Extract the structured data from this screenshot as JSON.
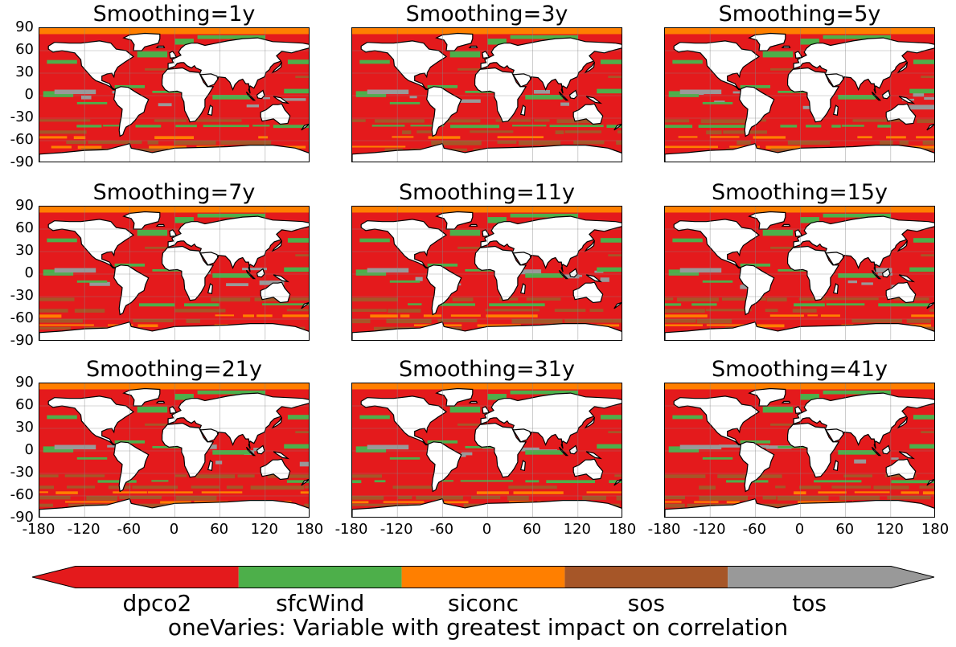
{
  "figure": {
    "panels": [
      {
        "title": "Smoothing=1y"
      },
      {
        "title": "Smoothing=3y"
      },
      {
        "title": "Smoothing=5y"
      },
      {
        "title": "Smoothing=7y"
      },
      {
        "title": "Smoothing=11y"
      },
      {
        "title": "Smoothing=15y"
      },
      {
        "title": "Smoothing=21y"
      },
      {
        "title": "Smoothing=31y"
      },
      {
        "title": "Smoothing=41y"
      }
    ],
    "y_ticks": [
      "90",
      "60",
      "30",
      "0",
      "-30",
      "-60",
      "-90"
    ],
    "x_ticks": [
      "-180",
      "-120",
      "-60",
      "0",
      "60",
      "120",
      "180"
    ],
    "colorbar": {
      "title": "oneVaries: Variable with greatest impact on correlation",
      "categories": [
        {
          "name": "dpco2",
          "color": "#e41a1c"
        },
        {
          "name": "sfcWind",
          "color": "#4daf4a"
        },
        {
          "name": "siconc",
          "color": "#ff7f00"
        },
        {
          "name": "sos",
          "color": "#a65628"
        },
        {
          "name": "tos",
          "color": "#999999"
        }
      ]
    }
  }
}
